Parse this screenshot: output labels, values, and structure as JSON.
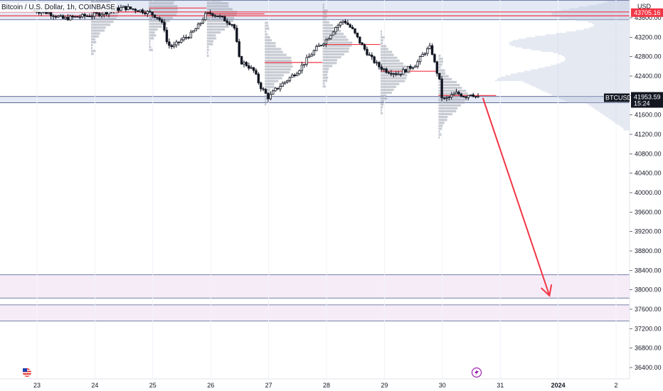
{
  "chart_data": {
    "type": "candlestick",
    "title": "Bitcoin / U.S. Dollar, 1h, COINBASE",
    "currency": "USD",
    "x_ticks": [
      "23",
      "24",
      "25",
      "26",
      "27",
      "28",
      "29",
      "30",
      "31",
      "2024",
      "2"
    ],
    "y_ticks": [
      36400,
      36800,
      37200,
      37600,
      38000,
      38400,
      38800,
      39200,
      39600,
      40000,
      40400,
      40800,
      41200,
      41600,
      42000,
      42400,
      42800,
      43200,
      43600
    ],
    "ylim": [
      36200,
      44200
    ],
    "price_labels": [
      {
        "value": 43705.16,
        "text": "43705.16",
        "color": "#f23645"
      },
      {
        "value": 41953.59,
        "text": "41953.59",
        "symbol": "BTCUSD",
        "countdown": "15:24",
        "color": "#131722"
      }
    ],
    "horizontal_zones": [
      {
        "from": 43560,
        "to": 43960,
        "color": "#d9e2f2"
      },
      {
        "from": 41850,
        "to": 41980,
        "color": "#d9e2f2"
      },
      {
        "from": 38310,
        "to": 37830,
        "color": "#f3e5f5"
      },
      {
        "from": 37690,
        "to": 37360,
        "color": "#f3e5f5"
      }
    ],
    "horizontal_lines": [
      {
        "value": 43720,
        "color": "#f23645"
      },
      {
        "value": 43640,
        "color": "#f23645"
      }
    ],
    "session_poc_lines": [
      {
        "day": 23,
        "value": 43720
      },
      {
        "day": 24,
        "value": 43800
      },
      {
        "day": 25,
        "value": 43680
      },
      {
        "day": 26,
        "value": 42680
      },
      {
        "day": 27,
        "value": 43050
      },
      {
        "day": 28,
        "value": 42500
      },
      {
        "day": 29,
        "value": 42000
      }
    ],
    "price_path": [
      {
        "x": 22.95,
        "y": 43750
      },
      {
        "x": 23.2,
        "y": 43700
      },
      {
        "x": 23.45,
        "y": 43580
      },
      {
        "x": 23.7,
        "y": 43620
      },
      {
        "x": 23.95,
        "y": 43650
      },
      {
        "x": 24.2,
        "y": 43720
      },
      {
        "x": 24.5,
        "y": 43810
      },
      {
        "x": 24.75,
        "y": 43760
      },
      {
        "x": 24.95,
        "y": 43700
      },
      {
        "x": 25.1,
        "y": 43600
      },
      {
        "x": 25.2,
        "y": 43380
      },
      {
        "x": 25.25,
        "y": 43050
      },
      {
        "x": 25.35,
        "y": 43000
      },
      {
        "x": 25.5,
        "y": 43150
      },
      {
        "x": 25.65,
        "y": 43250
      },
      {
        "x": 25.8,
        "y": 43450
      },
      {
        "x": 25.9,
        "y": 43650
      },
      {
        "x": 26.0,
        "y": 43700
      },
      {
        "x": 26.15,
        "y": 43620
      },
      {
        "x": 26.3,
        "y": 43520
      },
      {
        "x": 26.4,
        "y": 43450
      },
      {
        "x": 26.5,
        "y": 42700
      },
      {
        "x": 26.6,
        "y": 42650
      },
      {
        "x": 26.75,
        "y": 42500
      },
      {
        "x": 26.85,
        "y": 42200
      },
      {
        "x": 27.0,
        "y": 41950
      },
      {
        "x": 27.1,
        "y": 42100
      },
      {
        "x": 27.3,
        "y": 42300
      },
      {
        "x": 27.5,
        "y": 42500
      },
      {
        "x": 27.7,
        "y": 42800
      },
      {
        "x": 27.85,
        "y": 43000
      },
      {
        "x": 28.0,
        "y": 43150
      },
      {
        "x": 28.15,
        "y": 43400
      },
      {
        "x": 28.3,
        "y": 43550
      },
      {
        "x": 28.45,
        "y": 43350
      },
      {
        "x": 28.6,
        "y": 43050
      },
      {
        "x": 28.75,
        "y": 42800
      },
      {
        "x": 28.9,
        "y": 42600
      },
      {
        "x": 29.05,
        "y": 42500
      },
      {
        "x": 29.25,
        "y": 42450
      },
      {
        "x": 29.4,
        "y": 42550
      },
      {
        "x": 29.55,
        "y": 42650
      },
      {
        "x": 29.7,
        "y": 42900
      },
      {
        "x": 29.8,
        "y": 43000
      },
      {
        "x": 29.88,
        "y": 42600
      },
      {
        "x": 29.95,
        "y": 42300
      },
      {
        "x": 30.0,
        "y": 41900
      },
      {
        "x": 30.1,
        "y": 41950
      },
      {
        "x": 30.25,
        "y": 42050
      },
      {
        "x": 30.4,
        "y": 41980
      },
      {
        "x": 30.5,
        "y": 42050
      },
      {
        "x": 30.6,
        "y": 41953
      }
    ],
    "forecast_arrow": {
      "from": {
        "x": 30.7,
        "y": 41950
      },
      "to": {
        "x": 31.85,
        "y": 37880
      },
      "color": "#f23645"
    }
  }
}
